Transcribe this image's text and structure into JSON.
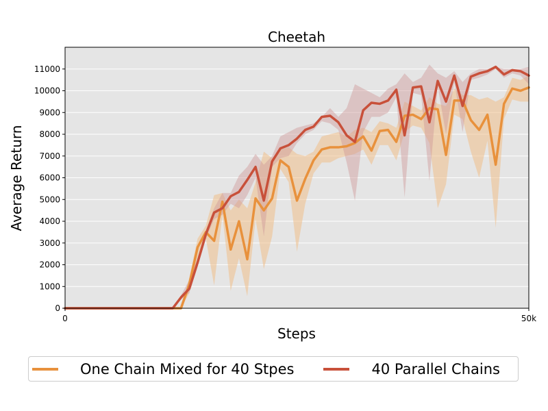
{
  "chart_data": {
    "type": "line",
    "title": "Cheetah",
    "xlabel": "Steps",
    "ylabel": "Average Return",
    "xlim": [
      0,
      50000
    ],
    "ylim": [
      0,
      12000
    ],
    "xticks": [
      0,
      50000
    ],
    "xtick_labels": [
      "0",
      "50k"
    ],
    "yticks": [
      0,
      1000,
      2000,
      3000,
      4000,
      5000,
      6000,
      7000,
      8000,
      9000,
      10000,
      11000
    ],
    "grid": true,
    "legend_position": "bottom",
    "series": [
      {
        "name": "One Chain Mixed for 40 Stpes",
        "color": "#E8913C",
        "band_color": "#F0C08A",
        "values": [
          0,
          0,
          0,
          0,
          0,
          0,
          0,
          0,
          0,
          0,
          0,
          0,
          0,
          0,
          0,
          1100,
          2800,
          3500,
          3100,
          4900,
          2700,
          4000,
          2250,
          5050,
          4500,
          5050,
          6800,
          6500,
          4950,
          5950,
          6800,
          7300,
          7400,
          7400,
          7450,
          7600,
          7900,
          7250,
          8150,
          8200,
          7650,
          8850,
          8900,
          8700,
          9200,
          9150,
          7050,
          9550,
          9550,
          8650,
          8200,
          8900,
          6600,
          9400,
          10100,
          10000,
          10150
        ],
        "lower": [
          0,
          0,
          0,
          0,
          0,
          0,
          0,
          0,
          0,
          0,
          0,
          0,
          0,
          0,
          0,
          700,
          2300,
          3200,
          1050,
          4300,
          800,
          2300,
          550,
          4100,
          1800,
          3300,
          6400,
          5800,
          2600,
          4800,
          6200,
          6700,
          6700,
          6900,
          7000,
          7100,
          7300,
          6600,
          7500,
          7500,
          6800,
          8100,
          8400,
          8300,
          7600,
          4600,
          5700,
          8900,
          8700,
          7200,
          6000,
          7700,
          3700,
          8700,
          9600,
          9500,
          9500
        ],
        "upper": [
          0,
          0,
          0,
          0,
          0,
          0,
          0,
          0,
          0,
          0,
          0,
          0,
          0,
          0,
          0,
          1400,
          3200,
          3800,
          5200,
          5300,
          4500,
          5000,
          4600,
          5800,
          7200,
          6900,
          7300,
          7400,
          7100,
          7000,
          7200,
          7900,
          8000,
          8100,
          7900,
          8200,
          8300,
          8100,
          8600,
          8500,
          8300,
          9500,
          9300,
          9100,
          9700,
          9400,
          9300,
          10100,
          9800,
          9800,
          9600,
          9700,
          9500,
          9700,
          10600,
          10500,
          10700
        ]
      },
      {
        "name": "40 Parallel Chains",
        "color": "#C8503A",
        "band_color": "#CF9A9A",
        "values": [
          0,
          0,
          0,
          0,
          0,
          0,
          0,
          0,
          0,
          0,
          0,
          0,
          0,
          0,
          500,
          900,
          2100,
          3400,
          4400,
          4600,
          5150,
          5350,
          5900,
          6500,
          4950,
          6750,
          7350,
          7500,
          7800,
          8200,
          8350,
          8800,
          8850,
          8550,
          7950,
          7650,
          9100,
          9450,
          9400,
          9550,
          10050,
          7950,
          10150,
          10200,
          8550,
          10450,
          9500,
          10700,
          9300,
          10650,
          10800,
          10900,
          11100,
          10750,
          10950,
          10900,
          10700
        ],
        "lower": [
          0,
          0,
          0,
          0,
          0,
          0,
          0,
          0,
          0,
          0,
          0,
          0,
          0,
          0,
          400,
          700,
          1900,
          3200,
          4100,
          4300,
          4800,
          4600,
          5200,
          6000,
          3300,
          6500,
          6900,
          7000,
          7600,
          8000,
          8200,
          8600,
          8500,
          8200,
          6700,
          4950,
          8100,
          8800,
          8800,
          9000,
          9700,
          5100,
          9900,
          9800,
          5850,
          10200,
          8000,
          10400,
          8100,
          10500,
          10600,
          10750,
          11000,
          10600,
          10800,
          10700,
          10300
        ],
        "upper": [
          0,
          0,
          0,
          0,
          0,
          0,
          0,
          0,
          0,
          0,
          0,
          0,
          0,
          0,
          600,
          1300,
          2300,
          3600,
          4600,
          5300,
          5300,
          6100,
          6500,
          7100,
          6600,
          7000,
          7900,
          8100,
          8300,
          8400,
          8500,
          8800,
          9200,
          8800,
          9200,
          10300,
          10100,
          9900,
          9700,
          10100,
          10300,
          10800,
          10400,
          10600,
          11200,
          10800,
          10600,
          10900,
          10400,
          10800,
          11000,
          11000,
          11100,
          11000,
          11000,
          11000,
          11100
        ]
      }
    ]
  },
  "legend": {
    "items": [
      {
        "label": "One Chain Mixed for 40 Stpes",
        "color": "#E8913C"
      },
      {
        "label": "40 Parallel Chains",
        "color": "#C8503A"
      }
    ]
  }
}
